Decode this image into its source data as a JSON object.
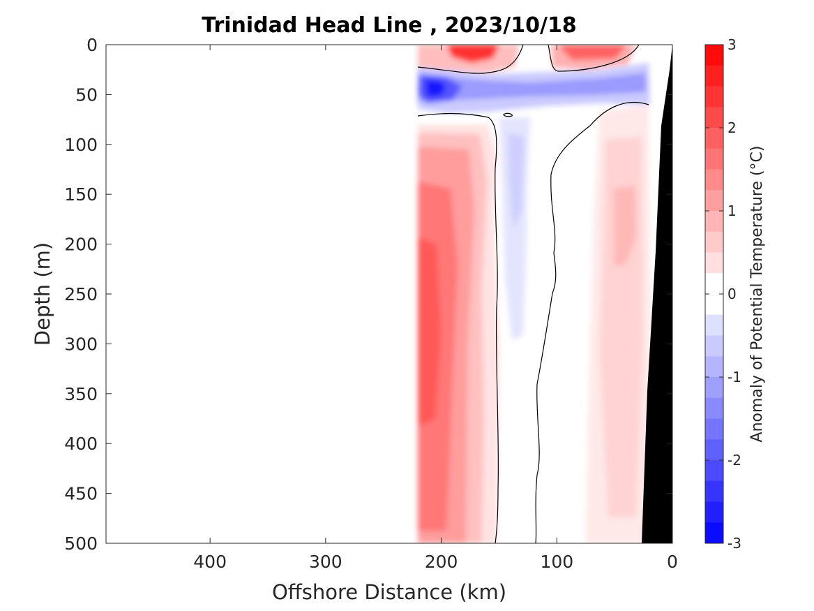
{
  "chart_data": {
    "type": "heatmap",
    "title": "Trinidad Head Line , 2023/10/18",
    "xlabel": "Offshore Distance (km)",
    "ylabel": "Depth (m)",
    "xlim": [
      490,
      0
    ],
    "x_reversed": true,
    "ylim": [
      0,
      500
    ],
    "y_reversed": true,
    "x_ticks": [
      "400",
      "300",
      "200",
      "100",
      "0"
    ],
    "x_tick_values": [
      400,
      300,
      200,
      100,
      0
    ],
    "y_ticks": [
      "0",
      "50",
      "100",
      "150",
      "200",
      "250",
      "300",
      "350",
      "400",
      "450",
      "500"
    ],
    "y_tick_values": [
      0,
      50,
      100,
      150,
      200,
      250,
      300,
      350,
      400,
      450,
      500
    ],
    "data_extent_km": [
      220,
      20
    ],
    "colorbar": {
      "label": "Anomaly of Potential Temperature (°C)",
      "range": [
        -3,
        3
      ],
      "step": 0.25,
      "ticks": [
        "3",
        "2",
        "1",
        "0",
        "-1",
        "-2",
        "-3"
      ],
      "tick_values": [
        3,
        2,
        1,
        0,
        -1,
        -2,
        -3
      ],
      "colormap": "blue-white-red"
    },
    "anomaly_regions": [
      {
        "name": "surface warm core offshore",
        "x": [
          218,
          150
        ],
        "depth": [
          0,
          28
        ],
        "anomaly": 2.6
      },
      {
        "name": "surface warm patch nearshore",
        "x": [
          110,
          30
        ],
        "depth": [
          0,
          25
        ],
        "anomaly": 1.6
      },
      {
        "name": "subsurface cold layer",
        "x": [
          220,
          20
        ],
        "depth": [
          28,
          70
        ],
        "anomaly": -1.3
      },
      {
        "name": "cold core",
        "x": [
          220,
          190
        ],
        "depth": [
          30,
          55
        ],
        "anomaly": -2.8
      },
      {
        "name": "deep warm column",
        "x": [
          220,
          160
        ],
        "depth": [
          75,
          500
        ],
        "anomaly": 1.7
      },
      {
        "name": "weak cold column",
        "x": [
          150,
          125
        ],
        "depth": [
          90,
          300
        ],
        "anomaly": -0.4
      },
      {
        "name": "nearshore warm column",
        "x": [
          75,
          25
        ],
        "depth": [
          80,
          500
        ],
        "anomaly": 0.6
      }
    ],
    "bathymetry_color": "#000000",
    "grid": false
  }
}
